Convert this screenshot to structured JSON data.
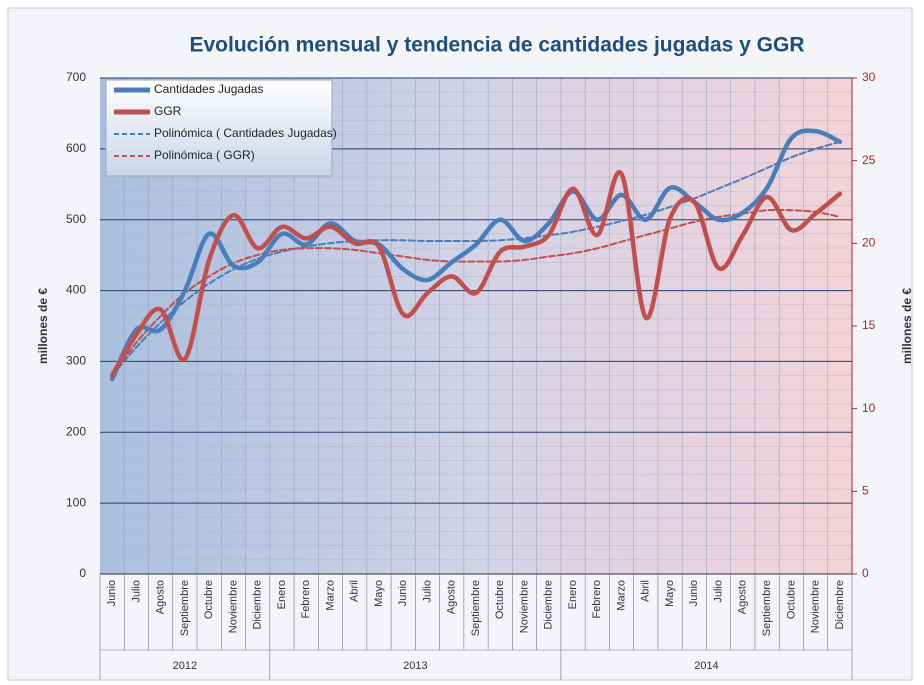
{
  "chart_data": {
    "type": "line",
    "title": "Evolución mensual y tendencia de cantidades jugadas y GGR",
    "ylabel": "millones de €",
    "y2label": "millones de €",
    "categories": [
      "Junio",
      "Julio",
      "Agosto",
      "Septiembre",
      "Octubre",
      "Noviembre",
      "Diciembre",
      "Enero",
      "Febrero",
      "Marzo",
      "Abril",
      "Mayo",
      "Junio",
      "Julio",
      "Agosto",
      "Septiembre",
      "Octubre",
      "Noviembre",
      "Diciembre",
      "Enero",
      "Febrero",
      "Marzo",
      "Abril",
      "Mayo",
      "Junio",
      "Julio",
      "Agosto",
      "Septiembre",
      "Octubre",
      "Noviembre",
      "Diciembre"
    ],
    "years": [
      "2012",
      "2013",
      "2014"
    ],
    "ylim": [
      0,
      700
    ],
    "yticks": [
      0,
      100,
      200,
      300,
      400,
      500,
      600,
      700
    ],
    "y2lim": [
      0,
      30
    ],
    "y2ticks": [
      0,
      5,
      10,
      15,
      20,
      25,
      30
    ],
    "grid": true,
    "legend": "upper left",
    "series": [
      {
        "name": "Cantidades Jugadas",
        "color": "#4a7ebb",
        "style": "solid",
        "values": [
          275,
          345,
          345,
          400,
          480,
          435,
          440,
          480,
          465,
          495,
          470,
          465,
          430,
          415,
          440,
          465,
          500,
          470,
          495,
          540,
          500,
          535,
          500,
          545,
          525,
          500,
          510,
          545,
          615,
          625,
          610
        ]
      },
      {
        "name": "GGR",
        "color": "#c0504d",
        "style": "solid",
        "axis": "y2",
        "values": [
          12,
          14.5,
          16,
          13,
          19,
          21.7,
          19.7,
          21,
          20.3,
          21,
          20,
          19.8,
          15.7,
          17,
          18,
          17,
          19.5,
          19.8,
          20.5,
          23.3,
          20.5,
          24.2,
          15.5,
          21.5,
          22.5,
          18.5,
          20.5,
          22.8,
          20.8,
          21.8,
          23
        ]
      },
      {
        "name": "Polinómica ( Cantidades Jugadas)",
        "color": "#4a7ebb",
        "style": "dashed",
        "values": [
          280,
          320,
          355,
          385,
          410,
          430,
          445,
          455,
          462,
          467,
          470,
          471,
          471,
          470,
          470,
          470,
          471,
          474,
          478,
          483,
          490,
          498,
          507,
          518,
          530,
          544,
          558,
          573,
          588,
          600,
          610
        ]
      },
      {
        "name": "Polinómica ( GGR)",
        "color": "#c0504d",
        "style": "dashed",
        "axis": "y2",
        "values": [
          12,
          14,
          15.6,
          17,
          18,
          18.8,
          19.3,
          19.6,
          19.7,
          19.7,
          19.6,
          19.4,
          19.2,
          19,
          18.9,
          18.9,
          18.9,
          19,
          19.2,
          19.4,
          19.7,
          20.1,
          20.5,
          20.9,
          21.3,
          21.6,
          21.8,
          22,
          22,
          21.9,
          21.6
        ]
      }
    ]
  }
}
